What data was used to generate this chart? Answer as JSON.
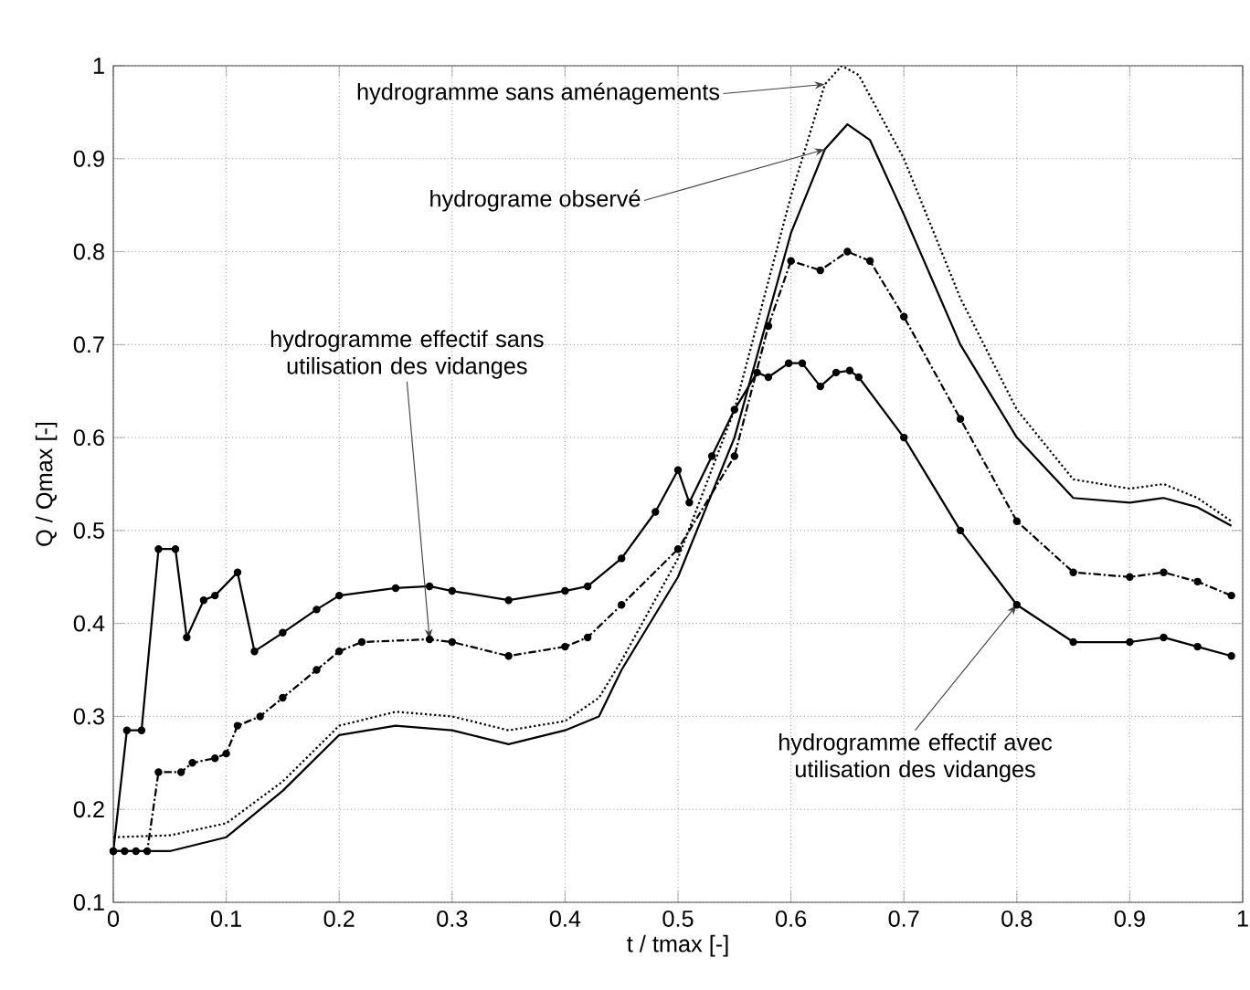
{
  "chart_data": {
    "type": "line",
    "xlabel": "t / tmax [-]",
    "ylabel": "Q / Qmax [-]",
    "xlim": [
      0,
      1
    ],
    "ylim": [
      0.1,
      1
    ],
    "xticks": [
      0,
      0.1,
      0.2,
      0.3,
      0.4,
      0.5,
      0.6,
      0.7,
      0.8,
      0.9,
      1
    ],
    "yticks": [
      0.1,
      0.2,
      0.3,
      0.4,
      0.5,
      0.6,
      0.7,
      0.8,
      0.9,
      1
    ],
    "grid": true,
    "series": [
      {
        "color": "#000000",
        "line_style": "dotted",
        "marker": "none",
        "x": [
          0,
          0.05,
          0.1,
          0.15,
          0.2,
          0.25,
          0.3,
          0.35,
          0.4,
          0.43,
          0.45,
          0.5,
          0.55,
          0.6,
          0.63,
          0.645,
          0.66,
          0.7,
          0.75,
          0.8,
          0.85,
          0.9,
          0.93,
          0.96,
          0.99
        ],
        "values": [
          0.17,
          0.172,
          0.185,
          0.23,
          0.29,
          0.305,
          0.3,
          0.285,
          0.295,
          0.32,
          0.36,
          0.47,
          0.63,
          0.86,
          0.98,
          1.0,
          0.99,
          0.9,
          0.75,
          0.63,
          0.555,
          0.545,
          0.55,
          0.535,
          0.51
        ]
      },
      {
        "color": "#000000",
        "line_style": "solid",
        "marker": "none",
        "x": [
          0,
          0.05,
          0.1,
          0.15,
          0.2,
          0.25,
          0.3,
          0.35,
          0.4,
          0.43,
          0.45,
          0.5,
          0.55,
          0.6,
          0.63,
          0.65,
          0.67,
          0.7,
          0.75,
          0.8,
          0.85,
          0.9,
          0.93,
          0.96,
          0.99
        ],
        "values": [
          0.155,
          0.155,
          0.17,
          0.22,
          0.28,
          0.29,
          0.285,
          0.27,
          0.285,
          0.3,
          0.35,
          0.45,
          0.6,
          0.82,
          0.91,
          0.937,
          0.92,
          0.84,
          0.7,
          0.6,
          0.535,
          0.53,
          0.535,
          0.525,
          0.505
        ]
      },
      {
        "color": "#000000",
        "line_style": "dashdotted",
        "marker": "circle",
        "x": [
          0,
          0.01,
          0.02,
          0.03,
          0.04,
          0.06,
          0.07,
          0.09,
          0.1,
          0.11,
          0.13,
          0.15,
          0.18,
          0.2,
          0.22,
          0.28,
          0.3,
          0.35,
          0.4,
          0.42,
          0.45,
          0.5,
          0.55,
          0.58,
          0.6,
          0.626,
          0.65,
          0.67,
          0.7,
          0.75,
          0.8,
          0.85,
          0.9,
          0.93,
          0.96,
          0.99
        ],
        "values": [
          0.155,
          0.155,
          0.155,
          0.155,
          0.24,
          0.24,
          0.25,
          0.255,
          0.26,
          0.29,
          0.3,
          0.32,
          0.35,
          0.37,
          0.38,
          0.383,
          0.38,
          0.365,
          0.375,
          0.385,
          0.42,
          0.48,
          0.58,
          0.72,
          0.79,
          0.78,
          0.8,
          0.79,
          0.73,
          0.62,
          0.51,
          0.455,
          0.45,
          0.455,
          0.445,
          0.43
        ]
      },
      {
        "color": "#000000",
        "line_style": "solid",
        "marker": "circle",
        "x": [
          0,
          0.012,
          0.025,
          0.04,
          0.055,
          0.065,
          0.08,
          0.09,
          0.11,
          0.125,
          0.15,
          0.18,
          0.2,
          0.25,
          0.28,
          0.3,
          0.35,
          0.4,
          0.42,
          0.45,
          0.48,
          0.5,
          0.51,
          0.53,
          0.55,
          0.57,
          0.58,
          0.598,
          0.61,
          0.626,
          0.64,
          0.652,
          0.66,
          0.7,
          0.75,
          0.8,
          0.85,
          0.9,
          0.93,
          0.96,
          0.99
        ],
        "values": [
          0.155,
          0.285,
          0.285,
          0.48,
          0.48,
          0.385,
          0.425,
          0.43,
          0.455,
          0.37,
          0.39,
          0.415,
          0.43,
          0.438,
          0.44,
          0.435,
          0.425,
          0.435,
          0.44,
          0.47,
          0.52,
          0.565,
          0.53,
          0.58,
          0.63,
          0.67,
          0.665,
          0.68,
          0.68,
          0.655,
          0.67,
          0.672,
          0.665,
          0.6,
          0.5,
          0.42,
          0.38,
          0.38,
          0.385,
          0.375,
          0.365
        ]
      }
    ],
    "annotations": [
      {
        "text": "hydrogramme sans aménagements",
        "x": 0.63,
        "y": 0.98
      },
      {
        "text": "hydrograme observé",
        "x": 0.63,
        "y": 0.91
      },
      {
        "text": "hydrogramme effectif sans utilisation des vidanges",
        "x": 0.28,
        "y": 0.383
      },
      {
        "text": "hydrogramme effectif avec utilisation des vidanges",
        "x": 0.8,
        "y": 0.42
      }
    ]
  }
}
